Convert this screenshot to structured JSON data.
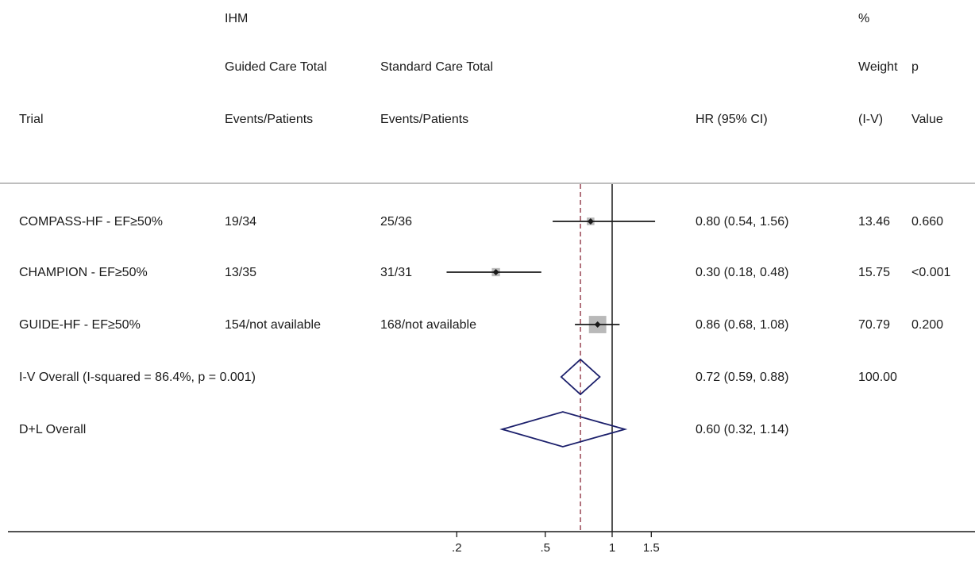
{
  "header": {
    "ihm": "IHM",
    "guided_total": "Guided Care Total",
    "standard_total": "Standard Care Total",
    "trial": "Trial",
    "guided_events": "Events/Patients",
    "standard_events": "Events/Patients",
    "hr_ci": "HR (95% CI)",
    "pct": "%",
    "weight": "Weight",
    "iv": "(I-V)",
    "p": "p",
    "value": "Value"
  },
  "rows": [
    {
      "trial": "COMPASS-HF - EF≥50%",
      "guided": "19/34",
      "standard": "25/36",
      "hr_text": "0.80 (0.54, 1.56)",
      "weight": "13.46",
      "p": "0.660"
    },
    {
      "trial": "CHAMPION - EF≥50%",
      "guided": "13/35",
      "standard": "31/31",
      "hr_text": "0.30 (0.18, 0.48)",
      "weight": "15.75",
      "p": "<0.001"
    },
    {
      "trial": "GUIDE-HF - EF≥50%",
      "guided": "154/not available",
      "standard": "168/not available",
      "hr_text": "0.86 (0.68, 1.08)",
      "weight": "70.79",
      "p": "0.200"
    },
    {
      "trial": "I-V Overall  (I-squared = 86.4%, p = 0.001)",
      "guided": "",
      "standard": "",
      "hr_text": "0.72 (0.59, 0.88)",
      "weight": "100.00",
      "p": ""
    },
    {
      "trial": "D+L Overall",
      "guided": "",
      "standard": "",
      "hr_text": "0.60 (0.32, 1.14)",
      "weight": "",
      "p": ""
    }
  ],
  "chart_data": {
    "type": "forest",
    "x_scale": "log",
    "x_ticks": [
      ".2",
      ".5",
      "1",
      "1.5"
    ],
    "x_tick_values": [
      0.2,
      0.5,
      1,
      1.5
    ],
    "reference_line": 1,
    "overall_line": 0.72,
    "studies": [
      {
        "name": "COMPASS-HF - EF≥50%",
        "hr": 0.8,
        "lo": 0.54,
        "hi": 1.56,
        "weight": 13.46
      },
      {
        "name": "CHAMPION - EF≥50%",
        "hr": 0.3,
        "lo": 0.18,
        "hi": 0.48,
        "weight": 15.75
      },
      {
        "name": "GUIDE-HF - EF≥50%",
        "hr": 0.86,
        "lo": 0.68,
        "hi": 1.08,
        "weight": 70.79
      }
    ],
    "pooled": [
      {
        "name": "I-V Overall",
        "hr": 0.72,
        "lo": 0.59,
        "hi": 0.88
      },
      {
        "name": "D+L Overall",
        "hr": 0.6,
        "lo": 0.32,
        "hi": 1.14
      }
    ],
    "colors": {
      "diamond": "#1b1f6b",
      "marker_box": "#b9b9b9",
      "overall_line": "#8a2a3a",
      "axis": "#1a1a1a",
      "separator": "#a8a8a8"
    }
  }
}
